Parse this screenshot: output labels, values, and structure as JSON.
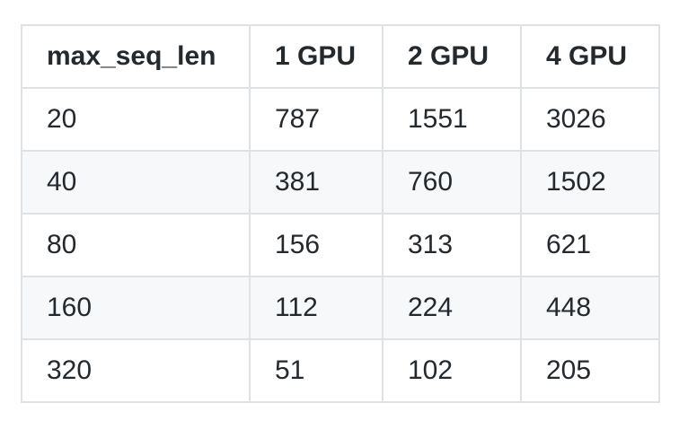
{
  "table": {
    "header": [
      "max_seq_len",
      "1 GPU",
      "2 GPU",
      "4 GPU"
    ],
    "rows": [
      [
        "20",
        "787",
        "1551",
        "3026"
      ],
      [
        "40",
        "381",
        "760",
        "1502"
      ],
      [
        "80",
        "156",
        "313",
        "621"
      ],
      [
        "160",
        "112",
        "224",
        "448"
      ],
      [
        "320",
        "51",
        "102",
        "205"
      ]
    ]
  }
}
